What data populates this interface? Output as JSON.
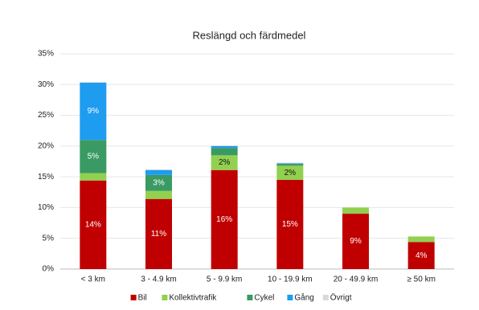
{
  "chart_data": {
    "type": "stacked_bar",
    "title": "Reslängd och färdmedel",
    "categories": [
      "< 3 km",
      "3 - 4.9 km",
      "5 - 9.9 km",
      "10 - 19.9 km",
      "20 - 49.9 km",
      "≥ 50 km"
    ],
    "series": [
      {
        "name": "Bil",
        "color": "#c00000",
        "values": [
          14.4,
          11.4,
          16.1,
          14.5,
          9.0,
          4.4
        ],
        "value_labels": [
          "14%",
          "11%",
          "16%",
          "15%",
          "9%",
          "4%"
        ]
      },
      {
        "name": "Kollektivtrafik",
        "color": "#92d050",
        "values": [
          1.2,
          1.3,
          2.4,
          2.3,
          1.0,
          0.9
        ],
        "value_labels": [
          null,
          null,
          "2%",
          "2%",
          null,
          null
        ]
      },
      {
        "name": "Cykel",
        "color": "#3a9a63",
        "values": [
          5.4,
          2.6,
          1.2,
          0.3,
          0,
          0
        ],
        "value_labels": [
          "5%",
          "3%",
          null,
          null,
          null,
          null
        ]
      },
      {
        "name": "Gång",
        "color": "#1e9cf0",
        "values": [
          9.3,
          0.8,
          0.3,
          0.1,
          0,
          0
        ],
        "value_labels": [
          "9%",
          null,
          null,
          null,
          null,
          null
        ]
      },
      {
        "name": "Övrigt",
        "color": "#d9d9d9",
        "values": [
          0.1,
          0.1,
          0.1,
          0.1,
          0,
          0
        ],
        "value_labels": [
          null,
          null,
          null,
          null,
          null,
          null
        ]
      }
    ],
    "ylim": [
      0,
      35
    ],
    "yticks": [
      {
        "value": 0,
        "label": "0%"
      },
      {
        "value": 5,
        "label": "5%"
      },
      {
        "value": 10,
        "label": "10%"
      },
      {
        "value": 15,
        "label": "15%"
      },
      {
        "value": 20,
        "label": "20%"
      },
      {
        "value": 25,
        "label": "25%"
      },
      {
        "value": 30,
        "label": "30%"
      },
      {
        "value": 35,
        "label": "35%"
      }
    ],
    "grid": true,
    "legend": "bottom"
  }
}
